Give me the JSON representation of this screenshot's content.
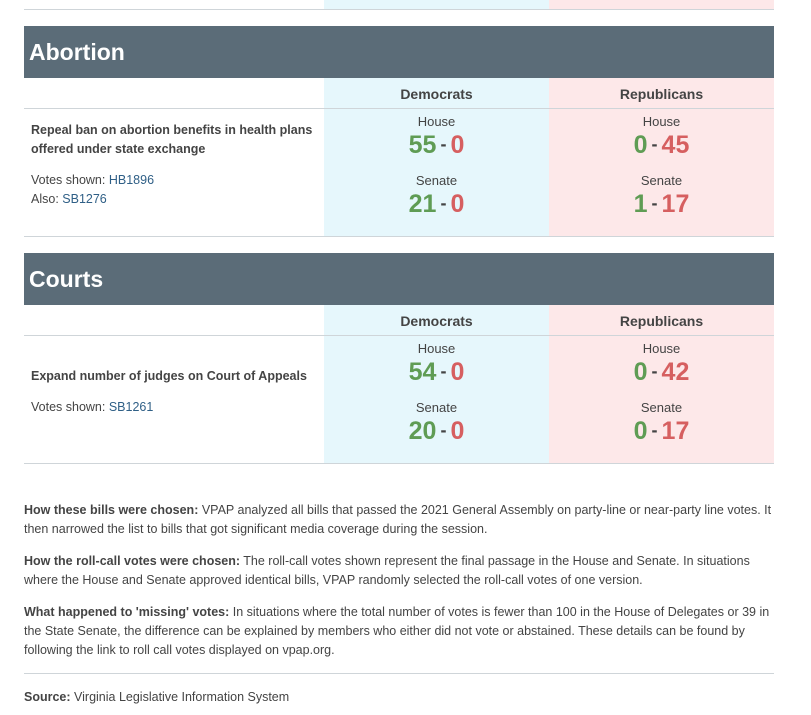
{
  "sections": [
    {
      "title": "Abortion",
      "dem_header": "Democrats",
      "rep_header": "Republicans",
      "bill_title": "Repeal ban on abortion benefits in health plans offered under state exchange",
      "votes_label": "Votes shown:",
      "votes_bill": "HB1896",
      "also_label": "Also:",
      "also_bill": "SB1276",
      "house_label": "House",
      "senate_label": "Senate",
      "dem_house_yes": "55",
      "dem_house_no": "0",
      "dem_senate_yes": "21",
      "dem_senate_no": "0",
      "rep_house_yes": "0",
      "rep_house_no": "45",
      "rep_senate_yes": "1",
      "rep_senate_no": "17"
    },
    {
      "title": "Courts",
      "dem_header": "Democrats",
      "rep_header": "Republicans",
      "bill_title": "Expand number of judges on Court of Appeals",
      "votes_label": "Votes shown:",
      "votes_bill": "SB1261",
      "house_label": "House",
      "senate_label": "Senate",
      "dem_house_yes": "54",
      "dem_house_no": "0",
      "dem_senate_yes": "20",
      "dem_senate_no": "0",
      "rep_house_yes": "0",
      "rep_house_no": "42",
      "rep_senate_yes": "0",
      "rep_senate_no": "17"
    }
  ],
  "notes": [
    {
      "label": "How these bills were chosen:",
      "text": " VPAP analyzed all bills that passed the 2021 General Assembly on party-line or near-party line votes. It then narrowed the list to bills that got significant media coverage during the session."
    },
    {
      "label": "How the roll-call votes were chosen:",
      "text": " The roll-call votes shown represent the final passage in the House and Senate. In situations where the House and Senate approved identical bills, VPAP randomly selected the roll-call votes of one version."
    },
    {
      "label": "What happened to 'missing' votes:",
      "text": " In situations where the total number of votes is fewer than 100 in the House of Delegates or 39 in the State Senate, the difference can be explained by members who either did not vote or abstained. These details can be found by following the link to roll call votes displayed on vpap.org."
    }
  ],
  "source": {
    "label": "Source:",
    "text": " Virginia Legislative Information System"
  },
  "colors": {
    "header_bg": "#5b6c78",
    "dem_bg": "#e6f7fc",
    "rep_bg": "#fde8e9",
    "yes": "#5f9c54",
    "no": "#d65f60"
  },
  "dash": "-"
}
